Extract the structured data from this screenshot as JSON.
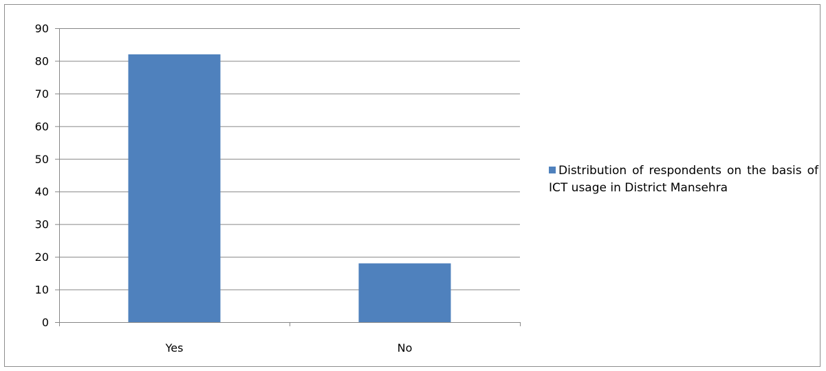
{
  "chart_data": {
    "type": "bar",
    "categories": [
      "Yes",
      "No"
    ],
    "series": [
      {
        "name": "Distribution of respondents on the basis of ICT usage in District Mansehra",
        "values": [
          82,
          18
        ]
      }
    ],
    "title": "",
    "xlabel": "",
    "ylabel": "",
    "ylim": [
      0,
      90
    ],
    "yticks": [
      0,
      10,
      20,
      30,
      40,
      50,
      60,
      70,
      80,
      90
    ],
    "grid": true,
    "legend_position": "right",
    "bar_color": "#4f81bd",
    "grid_color": "#868686",
    "axis_color": "#868686"
  }
}
